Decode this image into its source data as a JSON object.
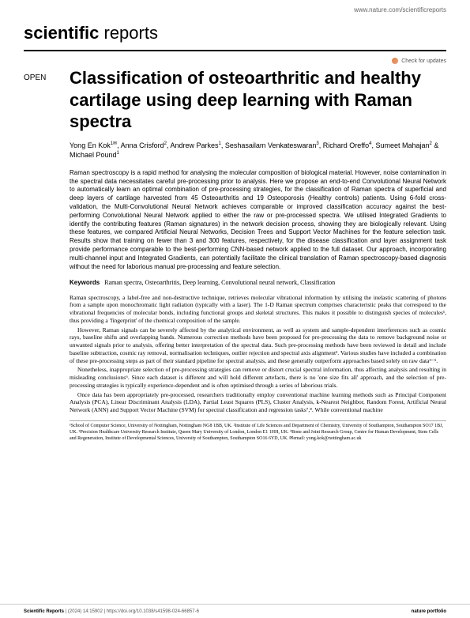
{
  "header": {
    "url": "www.nature.com/scientificreports",
    "journal_bold": "scientific",
    "journal_light": " reports",
    "check_updates": "Check for updates"
  },
  "article": {
    "open_label": "OPEN",
    "title": "Classification of osteoarthritic and healthy cartilage using deep learning with Raman spectra",
    "authors_html": "Yong En Kok<sup>1✉</sup>, Anna Crisford<sup>2</sup>, Andrew Parkes<sup>1</sup>, Seshasailam Venkateswaran<sup>3</sup>, Richard Oreffo<sup>4</sup>, Sumeet Mahajan<sup>2</sup> & Michael Pound<sup>1</sup>",
    "abstract": "Raman spectroscopy is a rapid method for analysing the molecular composition of biological material. However, noise contamination in the spectral data necessitates careful pre-processing prior to analysis. Here we propose an end-to-end Convolutional Neural Network to automatically learn an optimal combination of pre-processing strategies, for the classification of Raman spectra of superficial and deep layers of cartilage harvested from 45 Osteoarthritis and 19 Osteoporosis (Healthy controls) patients. Using 6-fold cross-validation, the Multi-Convolutional Neural Network achieves comparable or improved classification accuracy against the best-performing Convolutional Neural Network applied to either the raw or pre-processed spectra. We utilised Integrated Gradients to identify the contributing features (Raman signatures) in the network decision process, showing they are biologically relevant. Using these features, we compared Artificial Neural Networks, Decision Trees and Support Vector Machines for the feature selection task. Results show that training on fewer than 3 and 300 features, respectively, for the disease classification and layer assignment task provide performance comparable to the best-performing CNN-based network applied to the full dataset. Our approach, incorporating multi-channel input and Integrated Gradients, can potentially facilitate the clinical translation of Raman spectroscopy-based diagnosis without the need for laborious manual pre-processing and feature selection.",
    "keywords_label": "Keywords",
    "keywords": "Raman spectra, Osteoarthritis, Deep learning, Convolutional neural network, Classification",
    "body_p1": "Raman spectroscopy, a label-free and non-destructive technique, retrieves molecular vibrational information by utilising the inelastic scattering of photons from a sample upon monochromatic light radiation (typically with a laser). The 1-D Raman spectrum comprises characteristic peaks that correspond to the vibrational frequencies of molecular bonds, including functional groups and skeletal structures. This makes it possible to distinguish species of molecules¹, thus providing a 'fingerprint' of the chemical composition of the sample.",
    "body_p2": "However, Raman signals can be severely affected by the analytical environment, as well as system and sample-dependent interferences such as cosmic rays, baseline shifts and overlapping bands. Numerous correction methods have been proposed for pre-processing the data to remove background noise or unwanted signals prior to analysis, offering better interpretation of the spectral data. Such pre-processing methods have been reviewed in detail and include baseline subtraction, cosmic ray removal, normalisation techniques, outlier rejection and spectral axis alignment². Various studies have included a combination of these pre-processing steps as part of their standard pipeline for spectral analysis, and these generally outperform approaches based solely on raw data³⁻⁵.",
    "body_p3": "Nonetheless, inappropriate selection of pre-processing strategies can remove or distort crucial spectral information, thus affecting analysis and resulting in misleading conclusions⁶. Since each dataset is different and will hold different artefacts, there is no 'one size fits all' approach, and the selection of pre-processing strategies is typically experience-dependent and is often optimised through a series of laborious trials.",
    "body_p4": "Once data has been appropriately pre-processed, researchers traditionally employ conventional machine learning methods such as Principal Component Analysis (PCA), Linear Discriminant Analysis (LDA), Partial Least Squares (PLS), Cluster Analysis, k-Nearest Neighbor, Random Forest, Artificial Neural Network (ANN) and Support Vector Machine (SVM) for spectral classification and regression tasks⁷,⁸. While conventional machine",
    "affiliations": "¹School of Computer Science, University of Nottingham, Nottingham NG8 1BB, UK. ²Institute of Life Sciences and Department of Chemistry, University of Southampton, Southampton SO17 1BJ, UK. ³Precision Healthcare University Research Institute, Queen Mary University of London, London E1 1HH, UK. ⁴Bone and Joint Research Group, Centre for Human Development, Stem Cells and Regeneration, Institute of Developmental Sciences, University of Southampton, Southampton SO16 6YD, UK. ✉email: yong.kok@nottingham.ac.uk"
  },
  "footer": {
    "left_bold": "Scientific Reports",
    "left_rest": " |        (2024) 14:15902  | https://doi.org/10.1038/s41598-024-66857-6",
    "right": "nature portfolio"
  }
}
